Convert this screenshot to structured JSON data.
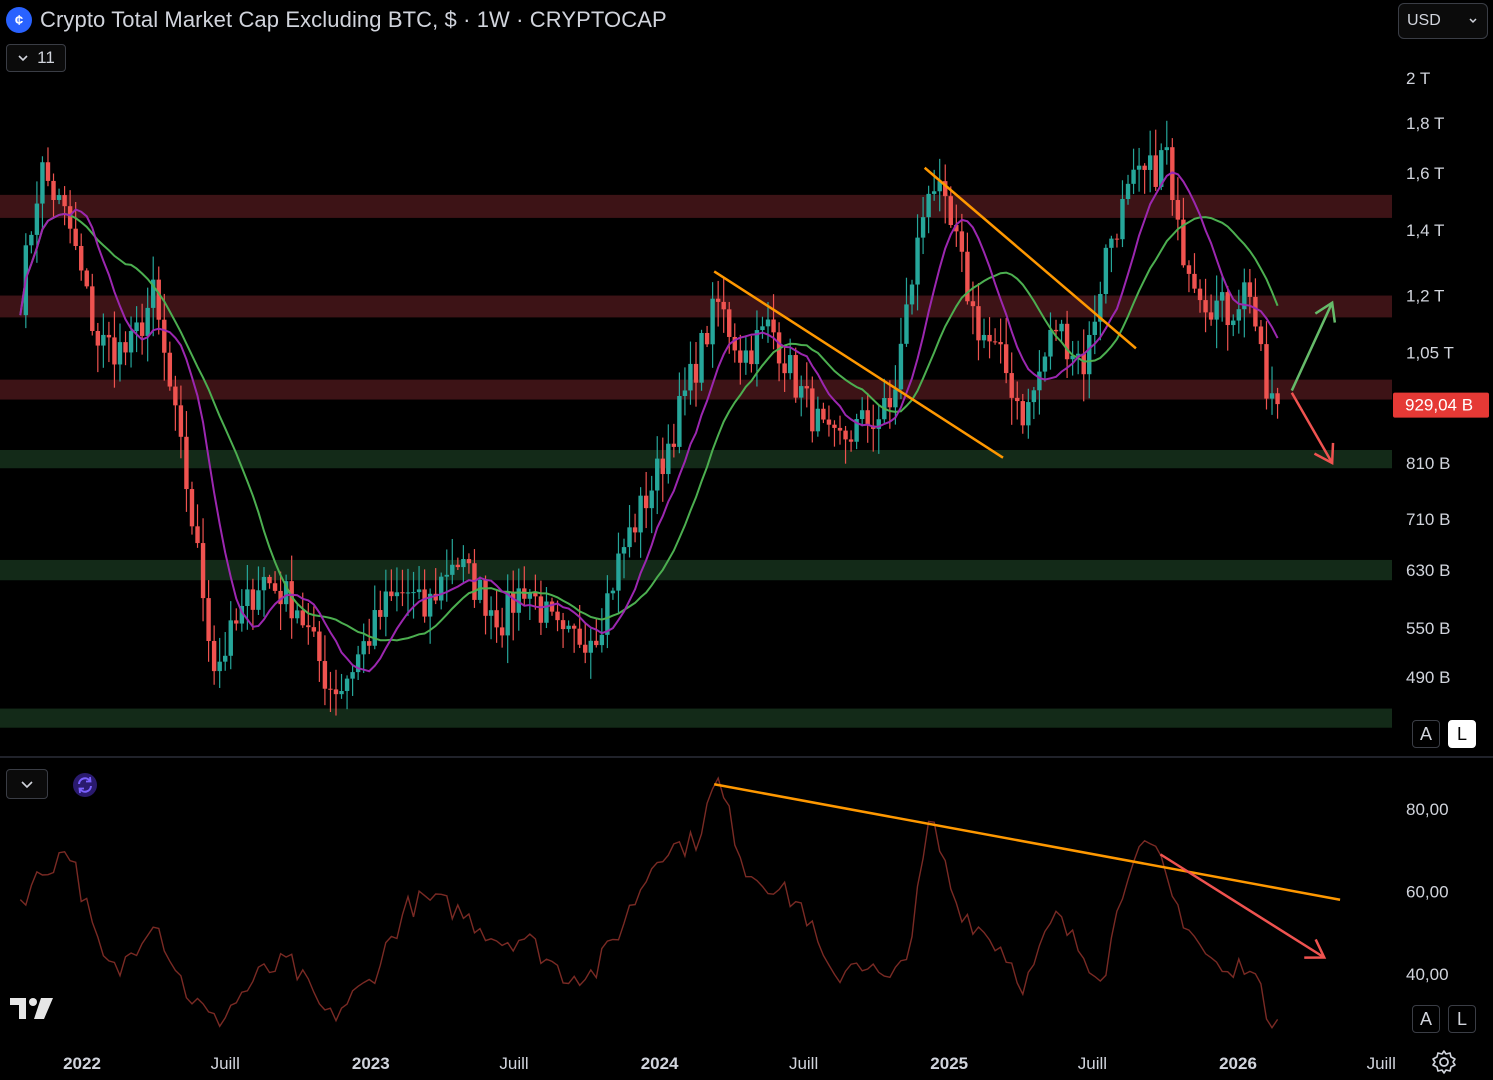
{
  "header": {
    "logo_glyph": "¢",
    "title": "Crypto Total Market Cap Excluding BTC, $ · 1W · CRYPTOCAP",
    "indicator_count": "11",
    "currency": "USD"
  },
  "colors": {
    "background": "#000000",
    "up_candle": "#26a69a",
    "down_candle": "#ef5350",
    "resistance_zone": "#3d1316",
    "support_zone": "#132a18",
    "fast_ma": "#9c27b0",
    "slow_ma": "#4caf50",
    "trendline": "#ff9800",
    "arrow_up": "#66bb6a",
    "arrow_down": "#ef5350",
    "rsi_line": "#7a2a24",
    "price_badge": "#e53935"
  },
  "chart_data": [
    {
      "type": "candlestick",
      "title": "Crypto Total Market Cap Excluding BTC, $ · 1W · CRYPTOCAP",
      "scale": "log",
      "currency": "USD",
      "y_ticks": [
        "2 T",
        "1,8 T",
        "1,6 T",
        "1,4 T",
        "1,2 T",
        "1,05 T",
        "810 B",
        "710 B",
        "630 B",
        "550 B",
        "490 B"
      ],
      "y_tick_values": [
        2.0,
        1.8,
        1.6,
        1.4,
        1.2,
        1.05,
        0.81,
        0.71,
        0.63,
        0.55,
        0.49
      ],
      "y_unit": "T USD",
      "last_price_label": "929,04 B",
      "last_price": 0.929,
      "x_ticks": [
        "2022",
        "Juill",
        "2023",
        "Juill",
        "2024",
        "Juill",
        "2025",
        "Juill",
        "2026",
        "Juill"
      ],
      "x_tick_dates": [
        "2022-01-01",
        "2022-07-01",
        "2023-01-01",
        "2023-07-01",
        "2024-01-01",
        "2024-07-01",
        "2025-01-01",
        "2025-07-01",
        "2026-01-01",
        "2026-07-01"
      ],
      "ohlc_anchor_points": {
        "dates": [
          "2021-10-15",
          "2021-11-10",
          "2021-12-15",
          "2022-01-20",
          "2022-03-01",
          "2022-04-01",
          "2022-05-12",
          "2022-06-18",
          "2022-08-15",
          "2022-09-30",
          "2022-11-09",
          "2022-11-25",
          "2023-01-20",
          "2023-02-15",
          "2023-03-10",
          "2023-04-15",
          "2023-06-15",
          "2023-07-15",
          "2023-09-01",
          "2023-10-15",
          "2023-11-15",
          "2024-01-01",
          "2024-03-14",
          "2024-04-15",
          "2024-05-20",
          "2024-06-20",
          "2024-08-05",
          "2024-09-06",
          "2024-10-20",
          "2024-11-15",
          "2024-12-08",
          "2025-01-10",
          "2025-02-03",
          "2025-03-10",
          "2025-04-07",
          "2025-05-15",
          "2025-06-22",
          "2025-07-20",
          "2025-08-20",
          "2025-09-20",
          "2025-10-06",
          "2025-10-11",
          "2025-11-20",
          "2025-12-20",
          "2026-01-15",
          "2026-02-05",
          "2026-02-20"
        ],
        "close_T": [
          1.2,
          1.62,
          1.42,
          1.08,
          1.05,
          1.2,
          0.78,
          0.5,
          0.62,
          0.58,
          0.48,
          0.48,
          0.58,
          0.6,
          0.57,
          0.65,
          0.56,
          0.61,
          0.53,
          0.55,
          0.66,
          0.8,
          1.18,
          1.04,
          1.12,
          0.98,
          0.84,
          0.88,
          0.92,
          1.25,
          1.6,
          1.35,
          1.13,
          1.02,
          0.9,
          1.12,
          1.02,
          1.35,
          1.55,
          1.62,
          1.7,
          1.42,
          1.2,
          1.15,
          1.24,
          0.95,
          0.93
        ]
      },
      "zones": [
        {
          "kind": "resistance",
          "from": 1.44,
          "to": 1.52
        },
        {
          "kind": "resistance",
          "from": 1.14,
          "to": 1.2
        },
        {
          "kind": "resistance",
          "from": 0.94,
          "to": 0.985
        },
        {
          "kind": "support",
          "from": 0.8,
          "to": 0.835
        },
        {
          "kind": "support",
          "from": 0.615,
          "to": 0.645
        },
        {
          "kind": "support",
          "from": 0.435,
          "to": 0.455
        }
      ],
      "trendlines": [
        {
          "from": [
            "2024-03-10",
            1.27
          ],
          "to": [
            "2025-03-10",
            0.82
          ]
        },
        {
          "from": [
            "2024-12-01",
            1.62
          ],
          "to": [
            "2025-08-25",
            1.06
          ]
        }
      ],
      "scenario_arrows": [
        {
          "direction": "up",
          "from": [
            "2026-03-10",
            0.96
          ],
          "to": [
            "2026-04-30",
            1.18
          ]
        },
        {
          "direction": "down",
          "from": [
            "2026-03-10",
            0.955
          ],
          "to": [
            "2026-04-30",
            0.81
          ]
        }
      ],
      "scale_buttons": {
        "auto": "A",
        "log": "L",
        "active": "L"
      }
    },
    {
      "type": "line",
      "indicator": "RSI",
      "y_ticks": [
        "80,00",
        "60,00",
        "40,00"
      ],
      "y_tick_values": [
        80,
        60,
        40
      ],
      "anchor_points": {
        "dates": [
          "2021-10-15",
          "2021-11-10",
          "2021-12-15",
          "2022-01-25",
          "2022-02-15",
          "2022-04-01",
          "2022-05-12",
          "2022-06-18",
          "2022-08-15",
          "2022-09-20",
          "2022-11-09",
          "2022-12-30",
          "2023-02-15",
          "2023-03-10",
          "2023-04-15",
          "2023-06-15",
          "2023-07-15",
          "2023-09-01",
          "2023-10-10",
          "2023-11-15",
          "2024-01-01",
          "2024-02-15",
          "2024-03-14",
          "2024-04-20",
          "2024-05-20",
          "2024-07-01",
          "2024-08-05",
          "2024-09-06",
          "2024-10-20",
          "2024-11-15",
          "2024-12-08",
          "2025-01-10",
          "2025-02-03",
          "2025-03-10",
          "2025-04-07",
          "2025-05-15",
          "2025-06-22",
          "2025-07-15",
          "2025-08-20",
          "2025-09-20",
          "2025-10-11",
          "2025-11-20",
          "2025-12-20",
          "2026-01-15",
          "2026-02-05",
          "2026-02-20"
        ],
        "values": [
          58,
          64,
          71,
          44,
          40,
          54,
          36,
          28,
          40,
          43,
          29,
          38,
          56,
          58,
          56,
          48,
          49,
          40,
          40,
          52,
          70,
          72,
          87,
          65,
          62,
          56,
          38,
          44,
          37,
          50,
          78,
          57,
          52,
          46,
          37,
          54,
          44,
          40,
          70,
          69,
          58,
          45,
          39,
          44,
          31,
          29
        ]
      },
      "trendlines": [
        {
          "from": [
            "2024-03-10",
            86
          ],
          "to": [
            "2026-05-10",
            58
          ]
        }
      ],
      "arrow": {
        "direction": "down",
        "from": [
          "2025-09-25",
          69
        ],
        "to": [
          "2026-04-20",
          44
        ]
      },
      "scale_buttons": {
        "auto": "A",
        "log": "L",
        "active": "none"
      }
    }
  ]
}
